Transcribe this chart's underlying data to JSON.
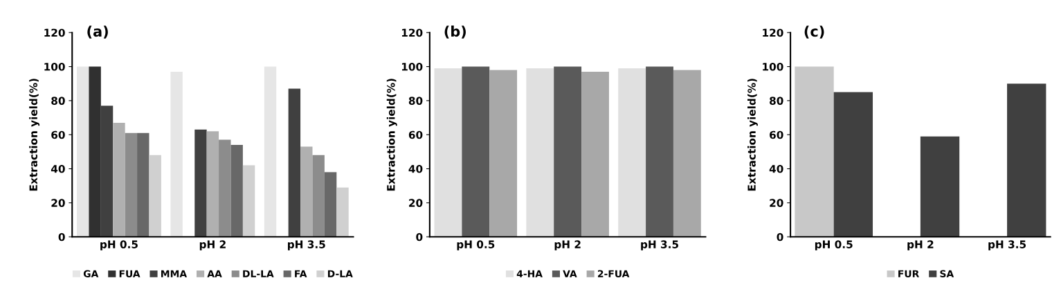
{
  "chart_data": [
    {
      "type": "bar",
      "annotations": [
        "(a)"
      ],
      "ylabel": "Extraction yield(%)",
      "categories": [
        "pH 0.5",
        "pH 2",
        "pH 3.5"
      ],
      "ylim": [
        0,
        120
      ],
      "yticks": [
        0,
        20,
        40,
        60,
        80,
        100,
        120
      ],
      "legend": "bottom",
      "grid": false,
      "series": [
        {
          "name": "GA",
          "color": "#e6e6e6",
          "values": [
            100,
            97,
            100
          ]
        },
        {
          "name": "FUA",
          "color": "#303030",
          "values": [
            100,
            null,
            null
          ]
        },
        {
          "name": "MMA",
          "color": "#404040",
          "values": [
            77,
            63,
            87
          ]
        },
        {
          "name": "AA",
          "color": "#b0b0b0",
          "values": [
            67,
            62,
            53
          ]
        },
        {
          "name": "DL-LA",
          "color": "#8c8c8c",
          "values": [
            61,
            57,
            48
          ]
        },
        {
          "name": "FA",
          "color": "#686868",
          "values": [
            61,
            54,
            38
          ]
        },
        {
          "name": "D-LA",
          "color": "#d0d0d0",
          "values": [
            48,
            42,
            29
          ]
        }
      ]
    },
    {
      "type": "bar",
      "annotations": [
        "(b)"
      ],
      "ylabel": "Extraction yield(%)",
      "categories": [
        "pH 0.5",
        "pH 2",
        "pH 3.5"
      ],
      "ylim": [
        0,
        120
      ],
      "yticks": [
        0,
        20,
        40,
        60,
        80,
        100,
        120
      ],
      "legend": "bottom",
      "grid": false,
      "series": [
        {
          "name": "4-HA",
          "color": "#e0e0e0",
          "values": [
            99,
            99,
            99
          ]
        },
        {
          "name": "VA",
          "color": "#5a5a5a",
          "values": [
            100,
            100,
            100
          ]
        },
        {
          "name": "2-FUA",
          "color": "#a8a8a8",
          "values": [
            98,
            97,
            98
          ]
        }
      ]
    },
    {
      "type": "bar",
      "annotations": [
        "(c)"
      ],
      "ylabel": "Extraction yield(%)",
      "categories": [
        "pH 0.5",
        "pH 2",
        "pH 3.5"
      ],
      "ylim": [
        0,
        120
      ],
      "yticks": [
        0,
        20,
        40,
        60,
        80,
        100,
        120
      ],
      "legend": "bottom",
      "grid": false,
      "series": [
        {
          "name": "FUR",
          "color": "#c8c8c8",
          "values": [
            100,
            null,
            null
          ]
        },
        {
          "name": "SA",
          "color": "#404040",
          "values": [
            85,
            59,
            90
          ]
        }
      ]
    }
  ]
}
